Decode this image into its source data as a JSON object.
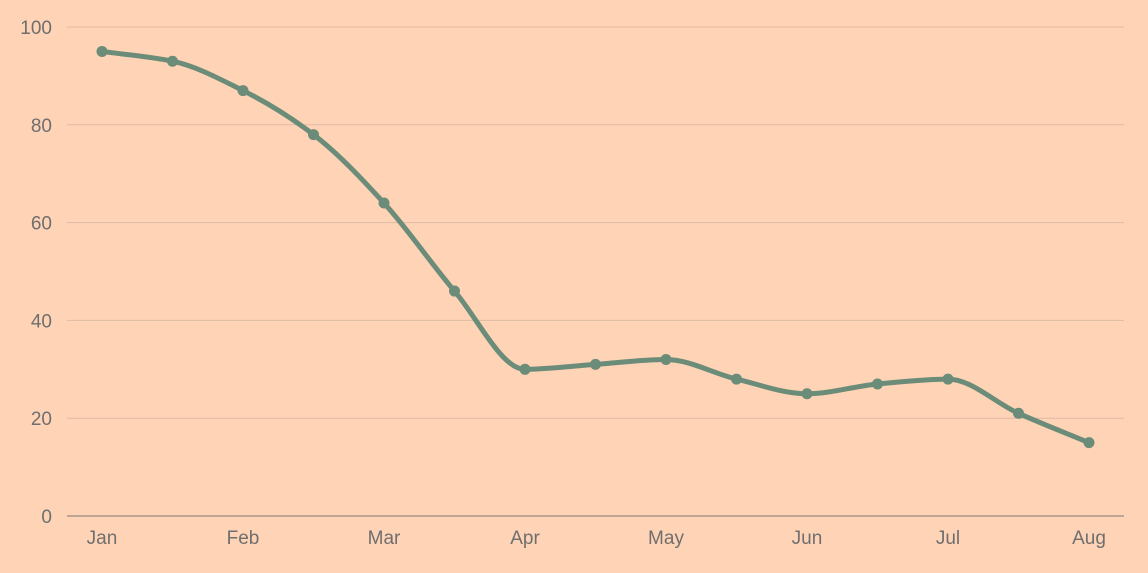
{
  "colors": {
    "background": "#FFD3B6",
    "line": "#6B8C78",
    "grid": "#DDBBA3",
    "axis": "#A99486",
    "tick_text": "#6f6f6f"
  },
  "chart_data": {
    "type": "line",
    "smooth": true,
    "markers": true,
    "grid": true,
    "legend": "none",
    "x_ticks": [
      "Jan",
      "Feb",
      "Mar",
      "Apr",
      "May",
      "Jun",
      "Jul",
      "Aug"
    ],
    "y_ticks": [
      "0",
      "20",
      "40",
      "60",
      "80",
      "100"
    ],
    "ylim": [
      0,
      100
    ],
    "x": [
      0,
      0.5,
      1,
      1.5,
      2,
      2.5,
      3,
      3.5,
      4,
      4.5,
      5,
      5.5,
      6,
      6.5,
      7
    ],
    "series": [
      {
        "values": [
          95,
          93,
          87,
          78,
          64,
          46,
          30,
          31,
          32,
          28,
          25,
          27,
          28,
          21,
          15
        ]
      }
    ]
  }
}
